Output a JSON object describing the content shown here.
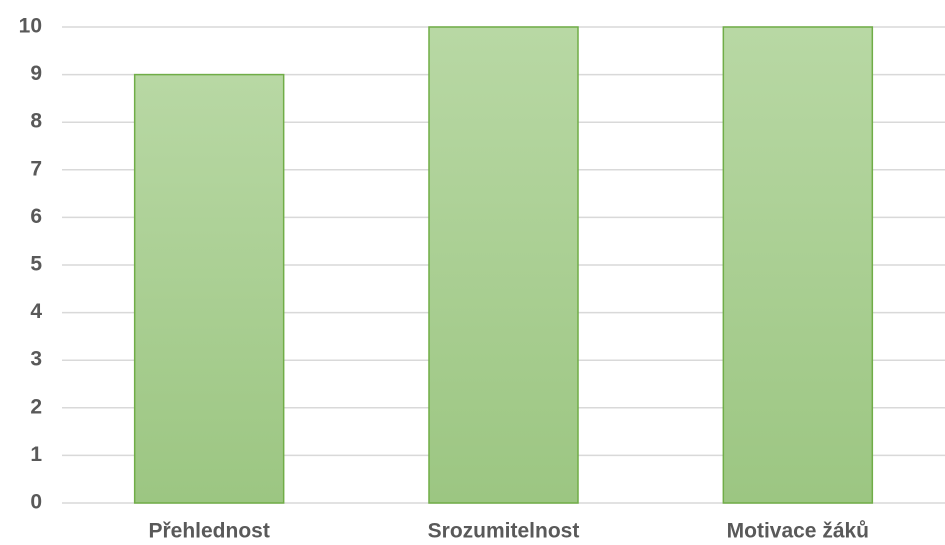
{
  "chart_data": {
    "type": "bar",
    "categories": [
      "Přehlednost",
      "Srozumitelnost",
      "Motivace žáků"
    ],
    "values": [
      9,
      10,
      10
    ],
    "color": "#a9d18e",
    "ylim": [
      0,
      10
    ],
    "yticks": [
      0,
      1,
      2,
      3,
      4,
      5,
      6,
      7,
      8,
      9,
      10
    ],
    "grid": true
  }
}
